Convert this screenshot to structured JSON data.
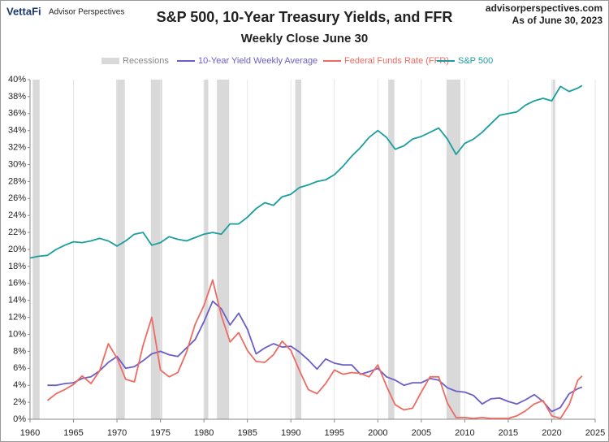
{
  "header": {
    "brand": "VettaFi",
    "brand_sub": "Advisor Perspectives",
    "site": "advisorperspectives.com",
    "as_of": "As of June 30, 2023"
  },
  "chart_data": {
    "type": "line",
    "title": "S&P 500, 10-Year Treasury Yields, and FFR",
    "subtitle": "Weekly Close June 30",
    "x": [
      1960,
      1961,
      1962,
      1963,
      1964,
      1965,
      1966,
      1967,
      1968,
      1969,
      1970,
      1971,
      1972,
      1973,
      1974,
      1975,
      1976,
      1977,
      1978,
      1979,
      1980,
      1981,
      1982,
      1983,
      1984,
      1985,
      1986,
      1987,
      1988,
      1989,
      1990,
      1991,
      1992,
      1993,
      1994,
      1995,
      1996,
      1997,
      1998,
      1999,
      2000,
      2001,
      2002,
      2003,
      2004,
      2005,
      2006,
      2007,
      2008,
      2009,
      2010,
      2011,
      2012,
      2013,
      2014,
      2015,
      2016,
      2017,
      2018,
      2019,
      2020,
      2021,
      2022,
      2023,
      2023.5
    ],
    "recessions": {
      "name": "Recessions",
      "color": "#d9d9d9",
      "periods": [
        [
          1960.3,
          1961.1
        ],
        [
          1969.9,
          1970.9
        ],
        [
          1973.9,
          1975.2
        ],
        [
          1980.0,
          1980.5
        ],
        [
          1981.5,
          1982.9
        ],
        [
          1990.5,
          1991.2
        ],
        [
          2001.2,
          2001.9
        ],
        [
          2007.9,
          2009.5
        ],
        [
          2020.1,
          2020.4
        ]
      ]
    },
    "series": [
      {
        "name": "10-Year Yield Weekly Average",
        "color": "#6b5fc7",
        "values": [
          null,
          null,
          4.0,
          4.0,
          4.2,
          4.3,
          4.8,
          5.0,
          5.7,
          6.7,
          7.4,
          6.0,
          6.2,
          6.9,
          7.7,
          8.0,
          7.6,
          7.4,
          8.4,
          9.4,
          11.5,
          13.9,
          13.0,
          11.1,
          12.5,
          10.6,
          7.7,
          8.4,
          8.9,
          8.5,
          8.6,
          7.9,
          7.0,
          5.9,
          7.1,
          6.6,
          6.4,
          6.4,
          5.3,
          5.6,
          6.0,
          5.0,
          4.6,
          4.0,
          4.3,
          4.3,
          4.8,
          4.6,
          3.7,
          3.3,
          3.2,
          2.8,
          1.8,
          2.4,
          2.5,
          2.1,
          1.8,
          2.3,
          2.9,
          2.1,
          0.9,
          1.4,
          3.0,
          3.6,
          3.8
        ]
      },
      {
        "name": "Federal Funds Rate (FFR)",
        "color": "#ee6b63",
        "values": [
          null,
          null,
          2.2,
          3.0,
          3.5,
          4.1,
          5.1,
          4.2,
          5.7,
          8.9,
          7.2,
          4.7,
          4.4,
          8.7,
          12.0,
          5.8,
          5.0,
          5.5,
          7.9,
          11.2,
          13.4,
          16.4,
          12.2,
          9.1,
          10.2,
          8.1,
          6.8,
          6.7,
          7.6,
          9.2,
          8.1,
          5.7,
          3.5,
          3.0,
          4.2,
          5.8,
          5.3,
          5.5,
          5.4,
          5.0,
          6.4,
          3.9,
          1.7,
          1.1,
          1.3,
          3.2,
          5.0,
          5.0,
          1.9,
          0.2,
          0.2,
          0.1,
          0.2,
          0.1,
          0.1,
          0.1,
          0.4,
          1.0,
          1.8,
          2.2,
          0.4,
          0.1,
          1.7,
          4.6,
          5.1
        ]
      },
      {
        "name": "S&P 500",
        "color": "#1a9e9e",
        "values": [
          19.0,
          19.2,
          19.3,
          20.0,
          20.5,
          20.9,
          20.8,
          21.0,
          21.3,
          21.0,
          20.4,
          21.0,
          21.8,
          22.0,
          20.5,
          20.8,
          21.5,
          21.2,
          21.0,
          21.4,
          21.8,
          22.0,
          21.8,
          23.0,
          23.0,
          23.8,
          24.8,
          25.5,
          25.2,
          26.2,
          26.5,
          27.3,
          27.6,
          28.0,
          28.2,
          28.8,
          29.8,
          31.0,
          32.0,
          33.2,
          34.0,
          33.2,
          31.8,
          32.2,
          33.0,
          33.3,
          33.8,
          34.3,
          33.0,
          31.2,
          32.5,
          33.0,
          33.8,
          34.8,
          35.8,
          36.0,
          36.2,
          37.0,
          37.5,
          37.8,
          37.5,
          39.2,
          38.6,
          39.0,
          39.3
        ]
      }
    ],
    "xlim": [
      1960,
      2025
    ],
    "xticks": [
      1960,
      1965,
      1970,
      1975,
      1980,
      1985,
      1990,
      1995,
      2000,
      2005,
      2010,
      2015,
      2020,
      2025
    ],
    "ylim": [
      0,
      40
    ],
    "yticks": [
      {
        "value": 0,
        "label": "0%"
      },
      {
        "value": 2,
        "label": "2%"
      },
      {
        "value": 4,
        "label": "4%"
      },
      {
        "value": 6,
        "label": "6%"
      },
      {
        "value": 8,
        "label": "8%"
      },
      {
        "value": 10,
        "label": "10%"
      },
      {
        "value": 12,
        "label": "12%"
      },
      {
        "value": 14,
        "label": "14%"
      },
      {
        "value": 16,
        "label": "16%"
      },
      {
        "value": 18,
        "label": "18%"
      },
      {
        "value": 20,
        "label": "20%"
      },
      {
        "value": 22,
        "label": "22%"
      },
      {
        "value": 24,
        "label": "24%"
      },
      {
        "value": 26,
        "label": "26%"
      },
      {
        "value": 28,
        "label": "28%"
      },
      {
        "value": 30,
        "label": "30%"
      },
      {
        "value": 32,
        "label": "32%"
      },
      {
        "value": 34,
        "label": "34%"
      },
      {
        "value": 36,
        "label": "36%"
      },
      {
        "value": 38,
        "label": "38%"
      },
      {
        "value": 40,
        "label": "40%"
      }
    ],
    "grid": "x"
  }
}
